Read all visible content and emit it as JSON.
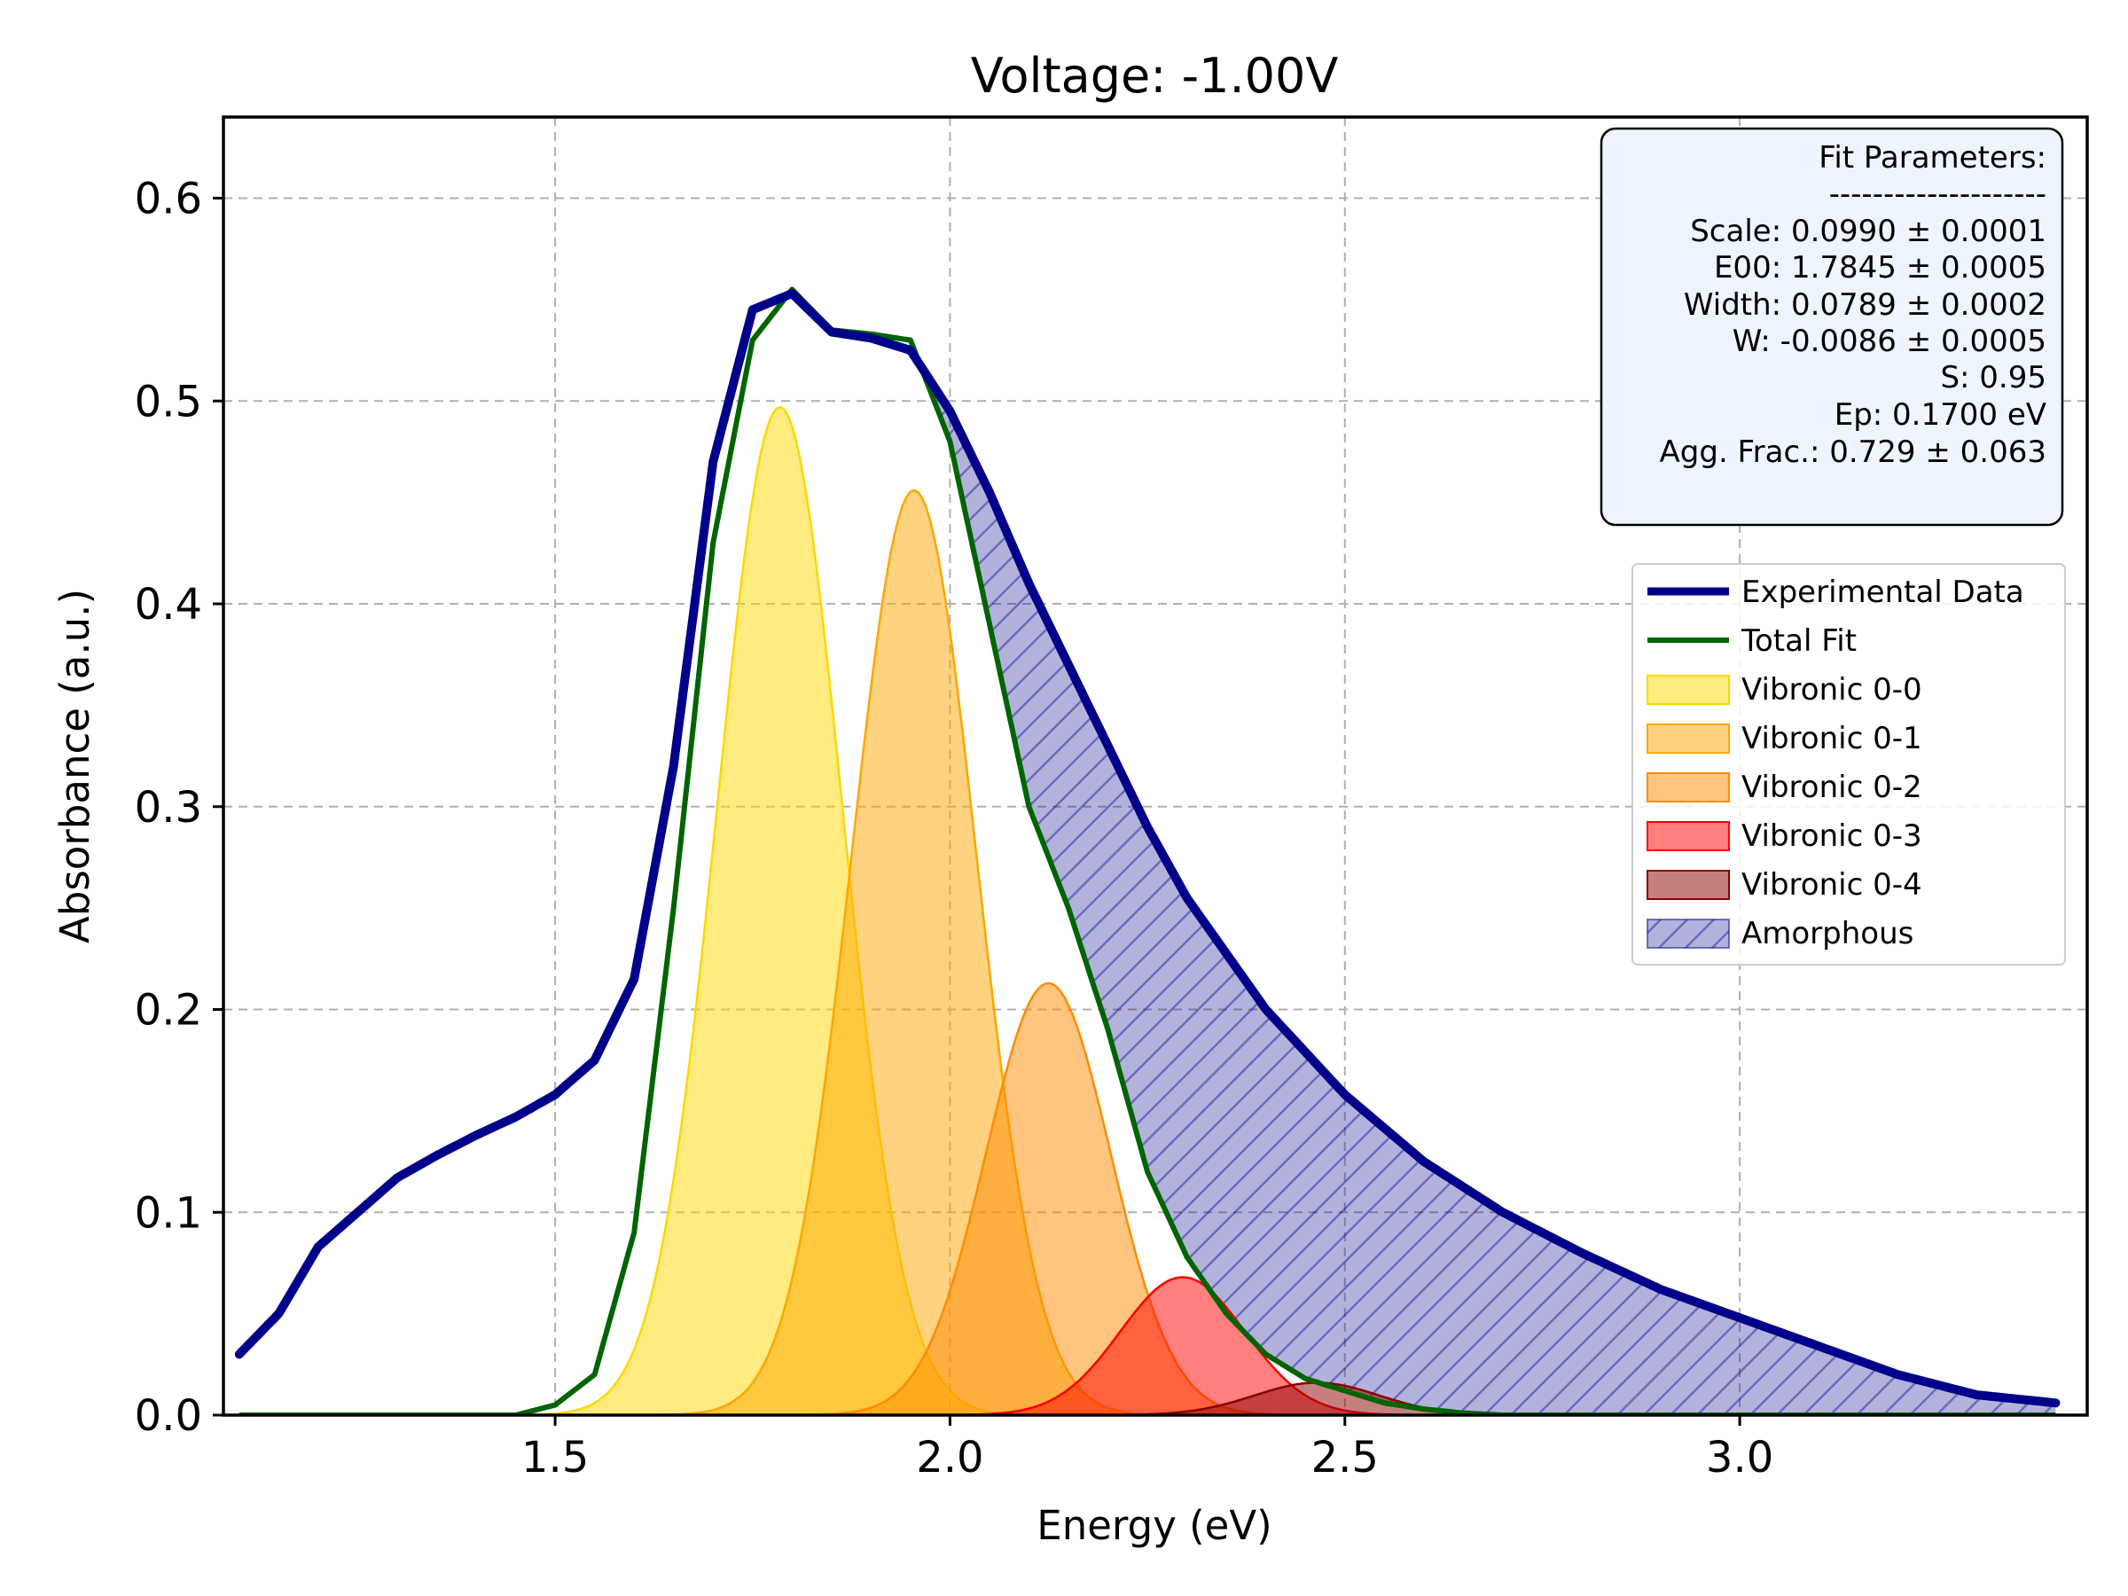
{
  "chart_data": {
    "type": "area",
    "title": "Voltage: -1.00V",
    "xlabel": "Energy (eV)",
    "ylabel": "Absorbance (a.u.)",
    "xlim": [
      1.08,
      3.44
    ],
    "ylim": [
      0.0,
      0.64
    ],
    "xticks": [
      1.5,
      2.0,
      2.5,
      3.0
    ],
    "xtick_labels": [
      "1.5",
      "2.0",
      "2.5",
      "3.0"
    ],
    "yticks": [
      0.0,
      0.1,
      0.2,
      0.3,
      0.4,
      0.5,
      0.6
    ],
    "ytick_labels": [
      "0.0",
      "0.1",
      "0.2",
      "0.3",
      "0.4",
      "0.5",
      "0.6"
    ],
    "grid": true,
    "legend_position": "right",
    "colors": {
      "experimental": "#00008b",
      "total_fit": "#006400",
      "v00": "#ffd700",
      "v01": "#ffa500",
      "v02": "#ff8c00",
      "v03": "#ff0000",
      "v04": "#8b0000",
      "amorphous": "#00008b",
      "params_box_fill": "#eef5ff"
    },
    "experimental": {
      "name": "Experimental Data",
      "x": [
        1.1,
        1.15,
        1.2,
        1.25,
        1.3,
        1.35,
        1.4,
        1.45,
        1.5,
        1.55,
        1.6,
        1.65,
        1.7,
        1.75,
        1.8,
        1.85,
        1.9,
        1.95,
        2.0,
        2.05,
        2.1,
        2.15,
        2.2,
        2.25,
        2.3,
        2.4,
        2.5,
        2.6,
        2.7,
        2.8,
        2.9,
        3.0,
        3.1,
        3.2,
        3.3,
        3.4
      ],
      "y": [
        0.03,
        0.05,
        0.083,
        0.1,
        0.117,
        0.128,
        0.138,
        0.147,
        0.158,
        0.175,
        0.215,
        0.32,
        0.47,
        0.545,
        0.553,
        0.534,
        0.531,
        0.525,
        0.495,
        0.455,
        0.41,
        0.37,
        0.33,
        0.29,
        0.255,
        0.2,
        0.158,
        0.125,
        0.1,
        0.08,
        0.062,
        0.048,
        0.034,
        0.02,
        0.01,
        0.006
      ]
    },
    "total_fit": {
      "name": "Total Fit",
      "x": [
        1.45,
        1.5,
        1.55,
        1.6,
        1.65,
        1.7,
        1.75,
        1.8,
        1.85,
        1.9,
        1.95,
        2.0,
        2.05,
        2.1,
        2.15,
        2.2,
        2.25,
        2.3,
        2.35,
        2.4,
        2.45,
        2.5,
        2.55,
        2.6,
        2.65,
        2.7
      ],
      "y": [
        0.0,
        0.005,
        0.02,
        0.09,
        0.25,
        0.43,
        0.53,
        0.555,
        0.535,
        0.533,
        0.53,
        0.48,
        0.39,
        0.3,
        0.25,
        0.19,
        0.12,
        0.078,
        0.05,
        0.03,
        0.018,
        0.012,
        0.006,
        0.003,
        0.001,
        0.0
      ]
    },
    "vibronic_components": [
      {
        "name": "Vibronic 0-0",
        "center": 1.7845,
        "amplitude": 0.497,
        "sigma": 0.0789
      },
      {
        "name": "Vibronic 0-1",
        "center": 1.9545,
        "amplitude": 0.456,
        "sigma": 0.0789
      },
      {
        "name": "Vibronic 0-2",
        "center": 2.1245,
        "amplitude": 0.213,
        "sigma": 0.0789
      },
      {
        "name": "Vibronic 0-3",
        "center": 2.2945,
        "amplitude": 0.068,
        "sigma": 0.0789
      },
      {
        "name": "Vibronic 0-4",
        "center": 2.4645,
        "amplitude": 0.016,
        "sigma": 0.0789
      }
    ],
    "amorphous": {
      "name": "Amorphous"
    },
    "fit_parameters": {
      "header": "Fit Parameters:",
      "separator": "--------------------",
      "lines": [
        "Scale: 0.0990 ± 0.0001",
        "E00: 1.7845 ± 0.0005",
        "Width: 0.0789 ± 0.0002",
        "W: -0.0086 ± 0.0005",
        "S: 0.95",
        "Ep: 0.1700 eV",
        "Agg. Frac.: 0.729 ± 0.063"
      ]
    }
  }
}
